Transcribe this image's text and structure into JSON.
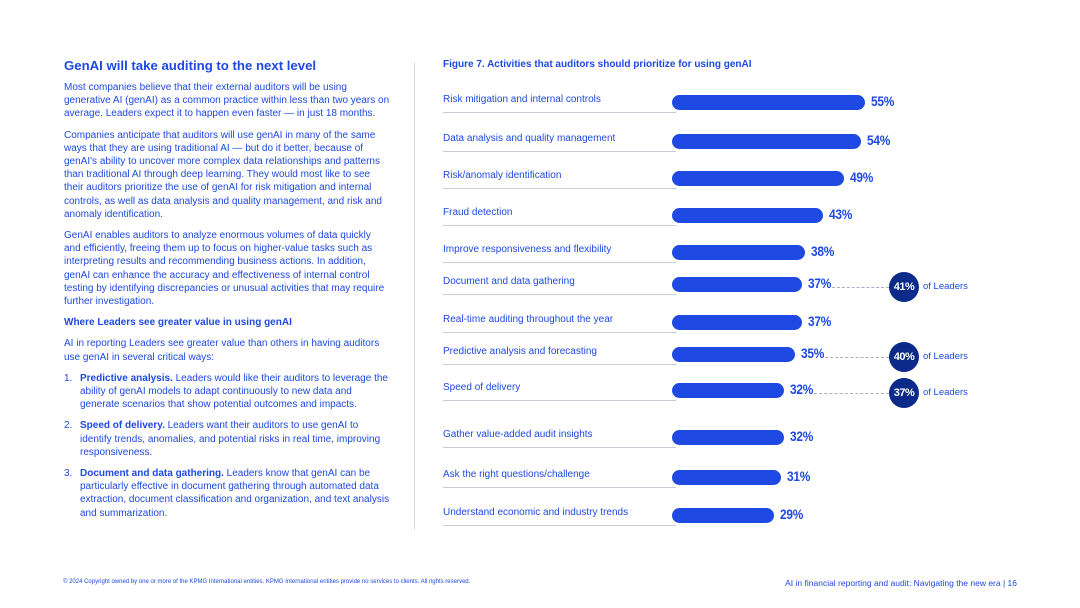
{
  "article": {
    "heading": "GenAI will take auditing to the next level",
    "para1": "Most companies believe that their external auditors will be using generative AI (genAI) as a common practice within less than two years on average. Leaders expect it to happen even faster — in just 18 months.",
    "para2": "Companies anticipate that auditors will use genAI in many of the same ways that they are using traditional AI — but do it better, because of genAI's ability to uncover more complex data relationships and patterns than traditional AI through deep learning. They would most like to see their auditors prioritize the use of genAI for risk mitigation and internal controls, as well as data analysis and quality management, and risk and anomaly identification.",
    "para3": "GenAI enables auditors to analyze enormous volumes of data quickly and efficiently, freeing them up to focus on higher-value tasks such as interpreting results and recommending business actions. In addition, genAI can enhance the accuracy and effectiveness of internal control testing by identifying discrepancies or unusual activities that may require further investigation.",
    "subheading": "Where Leaders see greater value in using genAI",
    "para4": "AI in reporting Leaders see greater value than others in having auditors use genAI in several critical ways:",
    "items": [
      {
        "num": "1.",
        "title": "Predictive analysis.",
        "text": " Leaders would like their auditors to leverage the ability of genAI models to adapt continuously to new data and generate scenarios that show potential outcomes and impacts."
      },
      {
        "num": "2.",
        "title": "Speed of delivery.",
        "text": " Leaders want their auditors to use genAI to identify trends, anomalies, and potential risks in real time, improving responsiveness."
      },
      {
        "num": "3.",
        "title": "Document and data gathering.",
        "text": " Leaders know that genAI can be particularly effective in document gathering through automated data extraction, document classification and organization, and text analysis and summarization."
      }
    ]
  },
  "figure": {
    "title": "Figure 7. Activities that auditors should prioritize for using genAI"
  },
  "chart_data": {
    "type": "bar",
    "orientation": "horizontal",
    "categories": [
      "Risk mitigation and internal controls",
      "Data analysis and quality management",
      "Risk/anomaly identification",
      "Fraud detection",
      "Improve responsiveness and flexibility",
      "Document and data gathering",
      "Real-time auditing throughout the year",
      "Predictive analysis and forecasting",
      "Speed of delivery",
      "Gather value-added audit insights",
      "Ask the right questions/challenge",
      "Understand economic and industry trends"
    ],
    "values": [
      55,
      54,
      49,
      43,
      38,
      37,
      37,
      35,
      32,
      32,
      31,
      29
    ],
    "value_labels": [
      "55%",
      "54%",
      "49%",
      "43%",
      "38%",
      "37%",
      "37%",
      "35%",
      "32%",
      "32%",
      "31%",
      "29%"
    ],
    "callouts": [
      {
        "category": "Document and data gathering",
        "value": 41,
        "badge": "41%",
        "text": "of Leaders"
      },
      {
        "category": "Predictive analysis and forecasting",
        "value": 40,
        "badge": "40%",
        "text": "of Leaders"
      },
      {
        "category": "Speed of delivery",
        "value": 37,
        "badge": "37%",
        "text": "of Leaders"
      }
    ],
    "bar_color": "#1e49e2",
    "badge_color": "#0c2a8a"
  },
  "footer": {
    "copyright": "© 2024 Copyright owned by one or more of the KPMG International entities. KPMG International entities provide no services to clients. All rights reserved.",
    "doc_title": "AI in financial reporting and audit: Navigating the new era  |  16"
  }
}
